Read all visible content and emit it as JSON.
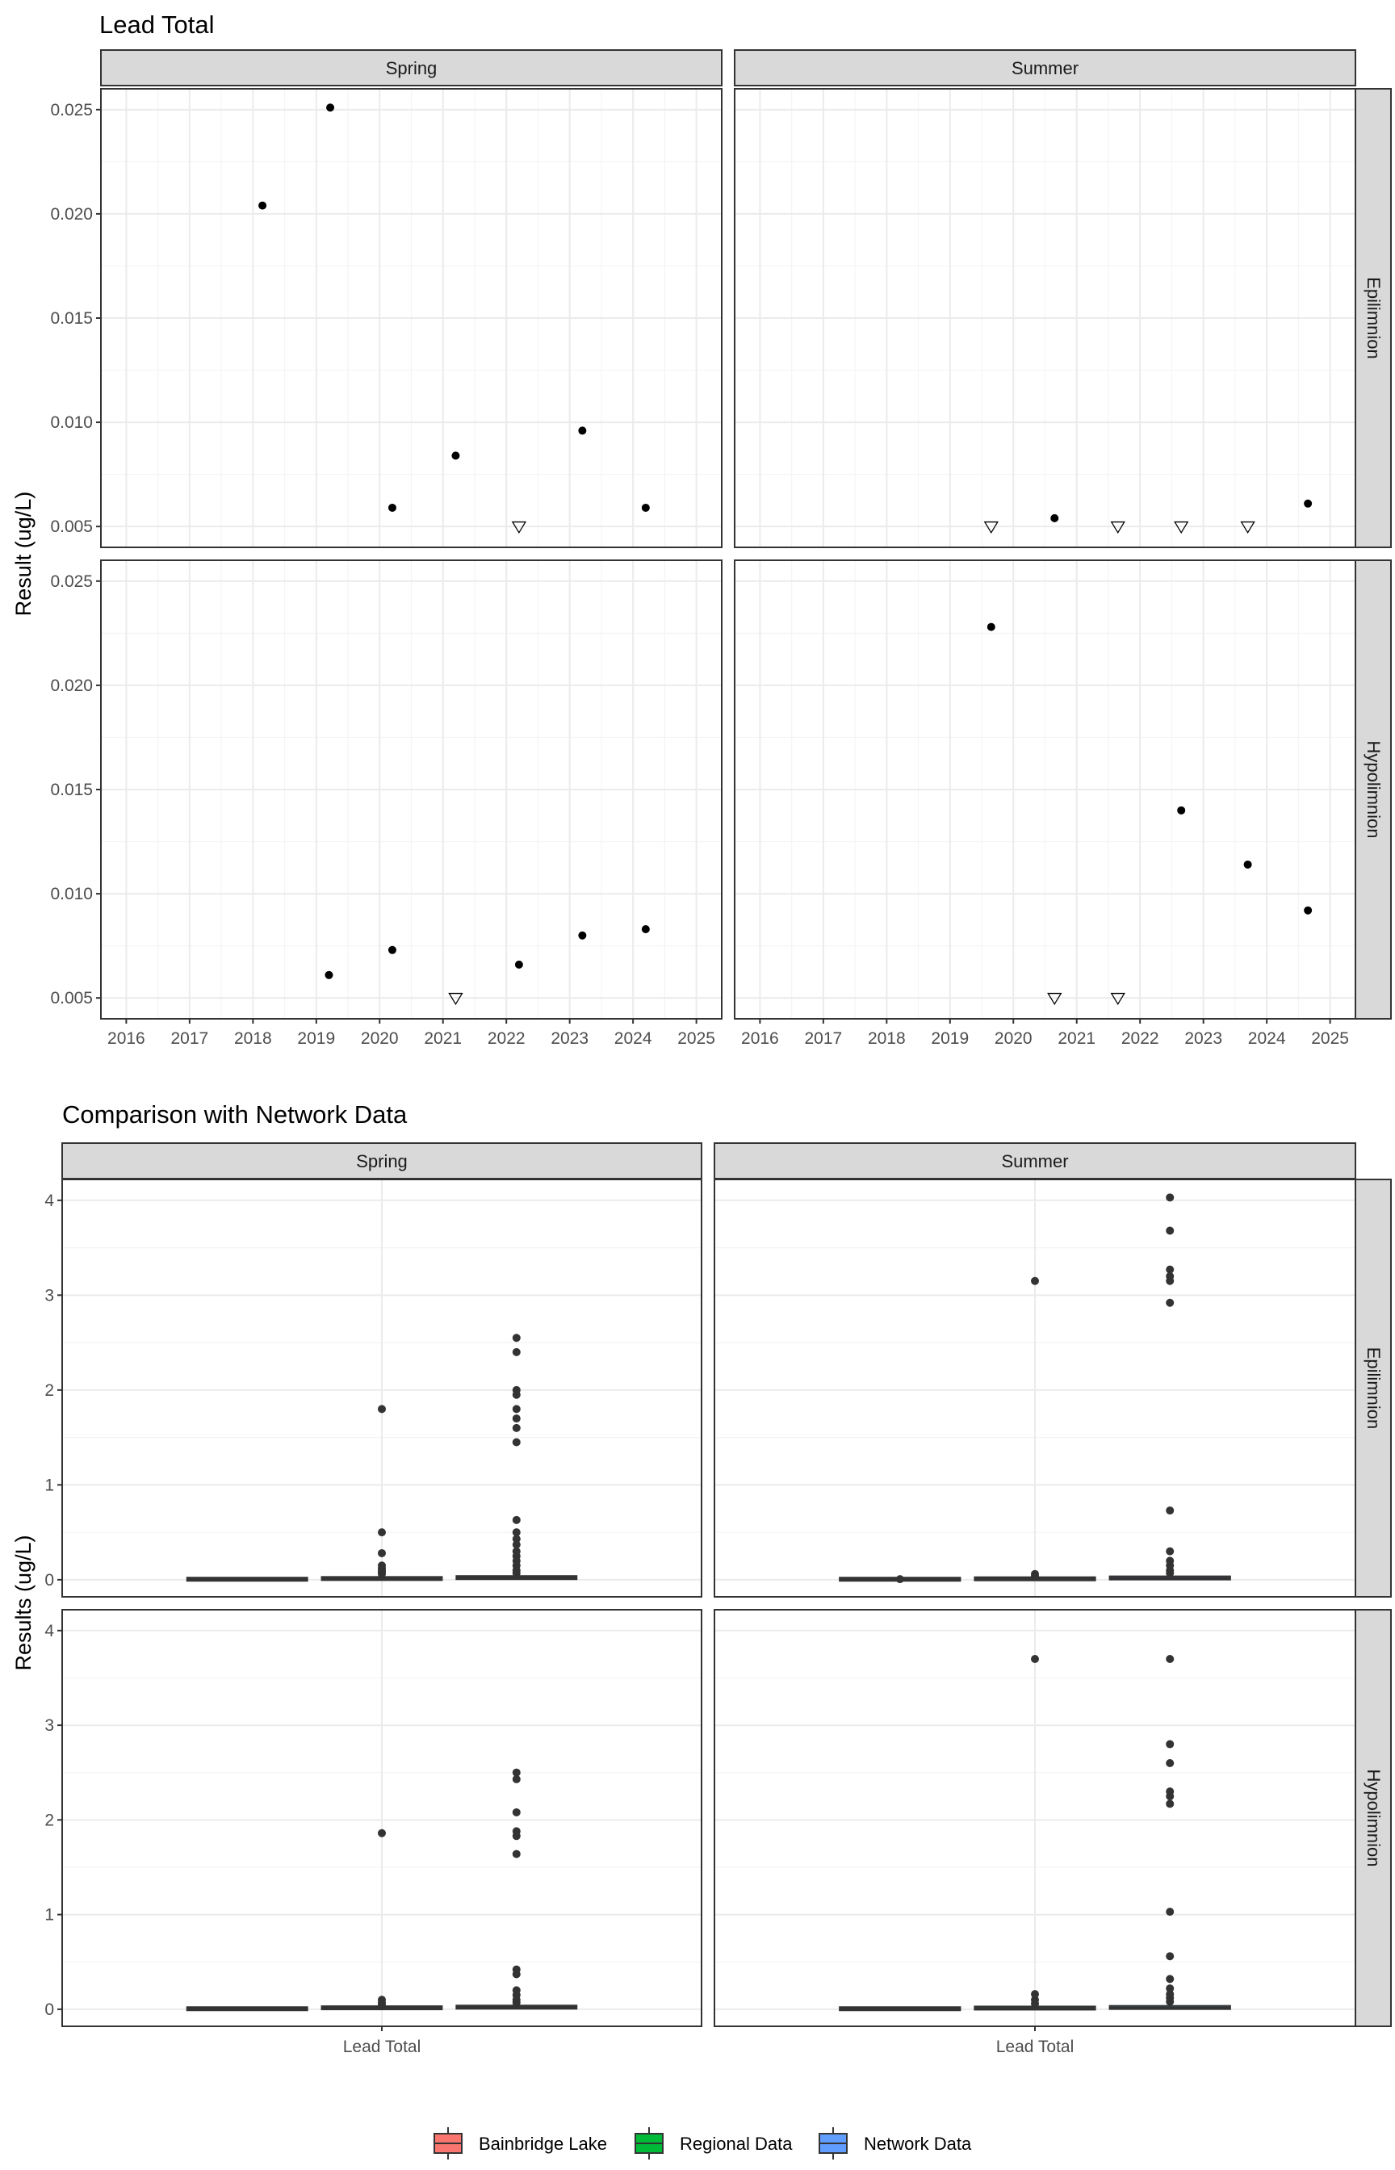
{
  "chart_data": [
    {
      "type": "scatter",
      "title": "Lead Total",
      "ylabel": "Result (ug/L)",
      "xlabel": "",
      "facet_cols": [
        "Spring",
        "Summer"
      ],
      "facet_rows": [
        "Epilimnion",
        "Hypolimnion"
      ],
      "x_ticks": [
        "2016",
        "2017",
        "2018",
        "2019",
        "2020",
        "2021",
        "2022",
        "2023",
        "2024",
        "2025"
      ],
      "y_ticks": [
        "0.005",
        "0.010",
        "0.015",
        "0.020",
        "0.025"
      ],
      "xlim": [
        2015.6,
        2025.4
      ],
      "ylim": [
        0.004,
        0.026
      ],
      "grid": true,
      "panels": [
        {
          "col": "Spring",
          "row": "Epilimnion",
          "points": [
            {
              "x": 2018.15,
              "y": 0.0204,
              "marker": "dot"
            },
            {
              "x": 2019.22,
              "y": 0.0251,
              "marker": "dot"
            },
            {
              "x": 2020.2,
              "y": 0.0059,
              "marker": "dot"
            },
            {
              "x": 2021.2,
              "y": 0.0084,
              "marker": "dot"
            },
            {
              "x": 2022.2,
              "y": 0.005,
              "marker": "triangle"
            },
            {
              "x": 2023.2,
              "y": 0.0096,
              "marker": "dot"
            },
            {
              "x": 2024.2,
              "y": 0.0059,
              "marker": "dot"
            }
          ]
        },
        {
          "col": "Summer",
          "row": "Epilimnion",
          "points": [
            {
              "x": 2019.65,
              "y": 0.005,
              "marker": "triangle"
            },
            {
              "x": 2020.65,
              "y": 0.0054,
              "marker": "dot"
            },
            {
              "x": 2021.65,
              "y": 0.005,
              "marker": "triangle"
            },
            {
              "x": 2022.65,
              "y": 0.005,
              "marker": "triangle"
            },
            {
              "x": 2023.7,
              "y": 0.005,
              "marker": "triangle"
            },
            {
              "x": 2024.65,
              "y": 0.0061,
              "marker": "dot"
            }
          ]
        },
        {
          "col": "Spring",
          "row": "Hypolimnion",
          "points": [
            {
              "x": 2019.2,
              "y": 0.0061,
              "marker": "dot"
            },
            {
              "x": 2020.2,
              "y": 0.0073,
              "marker": "dot"
            },
            {
              "x": 2021.2,
              "y": 0.005,
              "marker": "triangle"
            },
            {
              "x": 2022.2,
              "y": 0.0066,
              "marker": "dot"
            },
            {
              "x": 2023.2,
              "y": 0.008,
              "marker": "dot"
            },
            {
              "x": 2024.2,
              "y": 0.0083,
              "marker": "dot"
            }
          ]
        },
        {
          "col": "Summer",
          "row": "Hypolimnion",
          "points": [
            {
              "x": 2019.65,
              "y": 0.0228,
              "marker": "dot"
            },
            {
              "x": 2020.65,
              "y": 0.005,
              "marker": "triangle"
            },
            {
              "x": 2021.65,
              "y": 0.005,
              "marker": "triangle"
            },
            {
              "x": 2022.65,
              "y": 0.014,
              "marker": "dot"
            },
            {
              "x": 2023.7,
              "y": 0.0114,
              "marker": "dot"
            },
            {
              "x": 2024.65,
              "y": 0.0092,
              "marker": "dot"
            }
          ]
        }
      ]
    },
    {
      "type": "box",
      "title": "Comparison with Network Data",
      "ylabel": "Results (ug/L)",
      "xlabel": "",
      "categories": [
        "Lead Total"
      ],
      "facet_cols": [
        "Spring",
        "Summer"
      ],
      "facet_rows": [
        "Epilimnion",
        "Hypolimnion"
      ],
      "y_ticks": [
        "0",
        "1",
        "2",
        "3",
        "4"
      ],
      "ylim": [
        -0.18,
        4.22
      ],
      "grid": true,
      "legend": {
        "position": "bottom",
        "items": [
          {
            "name": "Bainbridge Lake",
            "color": "#F8766D"
          },
          {
            "name": "Regional Data",
            "color": "#00BA38"
          },
          {
            "name": "Network Data",
            "color": "#619CFF"
          }
        ]
      },
      "panels": [
        {
          "col": "Spring",
          "row": "Epilimnion",
          "groups": [
            {
              "series": "Bainbridge Lake",
              "median": 0.005,
              "q1": 0.004,
              "q3": 0.007,
              "outliers": []
            },
            {
              "series": "Regional Data",
              "median": 0.01,
              "q1": 0.006,
              "q3": 0.02,
              "outliers": [
                1.8,
                0.5,
                0.28,
                0.15,
                0.12,
                0.1,
                0.08,
                0.06
              ]
            },
            {
              "series": "Network Data",
              "median": 0.02,
              "q1": 0.01,
              "q3": 0.035,
              "outliers": [
                2.55,
                2.4,
                2.0,
                1.95,
                1.8,
                1.7,
                1.6,
                1.45,
                0.63,
                0.5,
                0.43,
                0.37,
                0.3,
                0.25,
                0.2,
                0.15,
                0.1,
                0.07
              ]
            }
          ]
        },
        {
          "col": "Summer",
          "row": "Epilimnion",
          "groups": [
            {
              "series": "Bainbridge Lake",
              "median": 0.005,
              "q1": 0.004,
              "q3": 0.007,
              "outliers": [
                0.006
              ]
            },
            {
              "series": "Regional Data",
              "median": 0.008,
              "q1": 0.005,
              "q3": 0.015,
              "outliers": [
                3.15,
                0.06,
                0.04
              ]
            },
            {
              "series": "Network Data",
              "median": 0.015,
              "q1": 0.008,
              "q3": 0.03,
              "outliers": [
                4.03,
                3.68,
                3.27,
                3.2,
                3.15,
                2.92,
                0.73,
                0.3,
                0.2,
                0.15,
                0.1,
                0.07
              ]
            }
          ]
        },
        {
          "col": "Spring",
          "row": "Hypolimnion",
          "groups": [
            {
              "series": "Bainbridge Lake",
              "median": 0.005,
              "q1": 0.004,
              "q3": 0.007,
              "outliers": []
            },
            {
              "series": "Regional Data",
              "median": 0.012,
              "q1": 0.006,
              "q3": 0.025,
              "outliers": [
                1.86,
                0.1,
                0.07,
                0.05
              ]
            },
            {
              "series": "Network Data",
              "median": 0.02,
              "q1": 0.01,
              "q3": 0.035,
              "outliers": [
                2.5,
                2.43,
                2.08,
                1.88,
                1.83,
                1.64,
                0.42,
                0.37,
                0.2,
                0.15,
                0.1,
                0.07
              ]
            }
          ]
        },
        {
          "col": "Summer",
          "row": "Hypolimnion",
          "groups": [
            {
              "series": "Bainbridge Lake",
              "median": 0.005,
              "q1": 0.004,
              "q3": 0.007,
              "outliers": []
            },
            {
              "series": "Regional Data",
              "median": 0.01,
              "q1": 0.005,
              "q3": 0.02,
              "outliers": [
                3.7,
                0.16,
                0.1,
                0.06
              ]
            },
            {
              "series": "Network Data",
              "median": 0.015,
              "q1": 0.008,
              "q3": 0.03,
              "outliers": [
                3.7,
                2.8,
                2.6,
                2.3,
                2.25,
                2.17,
                1.03,
                0.56,
                0.32,
                0.22,
                0.16,
                0.12,
                0.08
              ]
            }
          ]
        }
      ]
    }
  ]
}
